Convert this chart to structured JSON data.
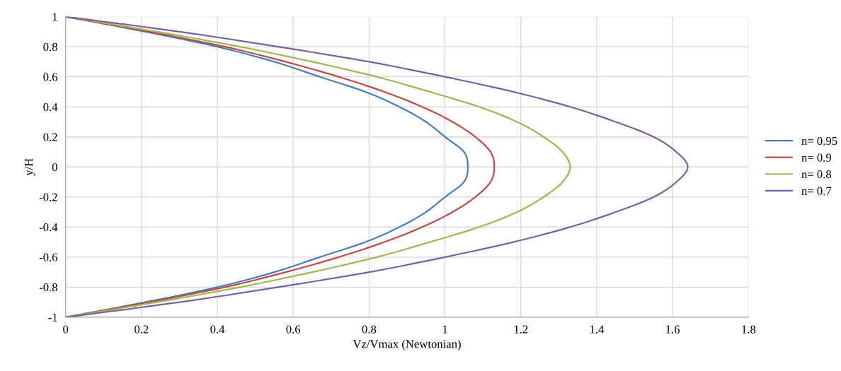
{
  "chart_data": {
    "type": "line",
    "xlabel": "Vz/Vmax (Newtonian)",
    "ylabel": "y/H",
    "xlim": [
      0,
      1.8
    ],
    "xticks": [
      0,
      0.2,
      0.4,
      0.6,
      0.8,
      1,
      1.2,
      1.4,
      1.6,
      1.8
    ],
    "ylim": [
      -1,
      1
    ],
    "yticks": [
      -1,
      -0.8,
      -0.6,
      -0.4,
      -0.2,
      0,
      0.2,
      0.4,
      0.6,
      0.8,
      1
    ],
    "grid": true,
    "legend": "right",
    "marker": "none",
    "line_style": "solid",
    "series": [
      {
        "name": "n= 0.95",
        "color": "#4a7ebb",
        "x": [
          0,
          0.21,
          0.4,
          0.55,
          0.67,
          0.79,
          0.88,
          0.95,
          1.0,
          1.05,
          1.06,
          1.05,
          1.0,
          0.95,
          0.88,
          0.79,
          0.67,
          0.55,
          0.4,
          0.21,
          0
        ],
        "values": [
          1,
          0.9,
          0.8,
          0.7,
          0.6,
          0.5,
          0.4,
          0.3,
          0.2,
          0.1,
          0,
          -0.1,
          -0.2,
          -0.3,
          -0.4,
          -0.5,
          -0.6,
          -0.7,
          -0.8,
          -0.9,
          -1
        ]
      },
      {
        "name": "n= 0.9",
        "color": "#be4b48",
        "x": [
          0,
          0.22,
          0.42,
          0.58,
          0.72,
          0.84,
          0.94,
          1.02,
          1.08,
          1.12,
          1.13,
          1.12,
          1.08,
          1.02,
          0.94,
          0.84,
          0.72,
          0.58,
          0.42,
          0.22,
          0
        ],
        "values": [
          1,
          0.9,
          0.8,
          0.7,
          0.6,
          0.5,
          0.4,
          0.3,
          0.2,
          0.1,
          0,
          -0.1,
          -0.2,
          -0.3,
          -0.4,
          -0.5,
          -0.6,
          -0.7,
          -0.8,
          -0.9,
          -1
        ]
      },
      {
        "name": "n= 0.8",
        "color": "#98b954",
        "x": [
          0,
          0.24,
          0.46,
          0.65,
          0.82,
          0.96,
          1.09,
          1.19,
          1.26,
          1.31,
          1.33,
          1.31,
          1.26,
          1.19,
          1.09,
          0.96,
          0.82,
          0.65,
          0.46,
          0.24,
          0
        ],
        "values": [
          1,
          0.9,
          0.8,
          0.7,
          0.6,
          0.5,
          0.4,
          0.3,
          0.2,
          0.1,
          0,
          -0.1,
          -0.2,
          -0.3,
          -0.4,
          -0.5,
          -0.6,
          -0.7,
          -0.8,
          -0.9,
          -1
        ]
      },
      {
        "name": "n= 0.7",
        "color": "#7d5fa0",
        "x": [
          0,
          0.3,
          0.56,
          0.8,
          1.0,
          1.18,
          1.33,
          1.45,
          1.55,
          1.61,
          1.64,
          1.61,
          1.55,
          1.45,
          1.33,
          1.18,
          1.0,
          0.8,
          0.56,
          0.3,
          0
        ],
        "values": [
          1,
          0.9,
          0.8,
          0.7,
          0.6,
          0.5,
          0.4,
          0.3,
          0.2,
          0.1,
          0,
          -0.1,
          -0.2,
          -0.3,
          -0.4,
          -0.5,
          -0.6,
          -0.7,
          -0.8,
          -0.9,
          -1
        ]
      }
    ]
  }
}
